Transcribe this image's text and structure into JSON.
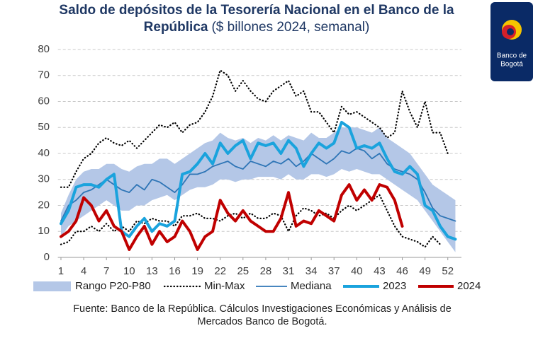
{
  "chart_data": {
    "type": "line",
    "title_lines": [
      "Saldo de depósitos de la Tesorería Nacional en el Banco de la",
      "República"
    ],
    "subtitle": "($ billones 2024, semanal)",
    "logo_text": [
      "Banco de",
      "Bogotá"
    ],
    "source_lines": [
      "Fuente: Banco de la República. Cálculos Investigaciones Económicas y Análisis de",
      "Mercados Banco de Bogotá."
    ],
    "x": [
      1,
      2,
      3,
      4,
      5,
      6,
      7,
      8,
      9,
      10,
      11,
      12,
      13,
      14,
      15,
      16,
      17,
      18,
      19,
      20,
      21,
      22,
      23,
      24,
      25,
      26,
      27,
      28,
      29,
      30,
      31,
      32,
      33,
      34,
      35,
      36,
      37,
      38,
      39,
      40,
      41,
      42,
      43,
      44,
      45,
      46,
      47,
      48,
      49,
      50,
      51,
      52,
      53
    ],
    "xlim": [
      0.6,
      53.8
    ],
    "xticks": [
      1,
      4,
      7,
      10,
      13,
      16,
      19,
      22,
      25,
      28,
      31,
      34,
      37,
      40,
      43,
      46,
      49,
      52
    ],
    "ylim": [
      0,
      80
    ],
    "yticks": [
      0,
      10,
      20,
      30,
      40,
      50,
      60,
      70,
      80
    ],
    "grid": true,
    "band": {
      "name": "Rango P20-P80",
      "color": "#b4c7e7",
      "lower": [
        8,
        12,
        14,
        16,
        18,
        20,
        22,
        20,
        18,
        18,
        20,
        20,
        22,
        23,
        24,
        22,
        24,
        26,
        27,
        27,
        28,
        30,
        30,
        29,
        30,
        30,
        31,
        31,
        31,
        30,
        32,
        30,
        30,
        32,
        32,
        31,
        32,
        34,
        33,
        34,
        33,
        32,
        32,
        30,
        28,
        26,
        24,
        22,
        18,
        14,
        10,
        6,
        2
      ],
      "upper": [
        17,
        24,
        30,
        33,
        34,
        34,
        36,
        36,
        34,
        33,
        35,
        36,
        36,
        38,
        38,
        36,
        38,
        40,
        42,
        44,
        45,
        48,
        46,
        45,
        46,
        44,
        46,
        45,
        47,
        45,
        47,
        46,
        45,
        48,
        46,
        46,
        48,
        50,
        50,
        50,
        49,
        48,
        50,
        46,
        44,
        42,
        40,
        36,
        32,
        28,
        26,
        24,
        22
      ]
    },
    "minmax": {
      "name": "Min-Max",
      "color": "#000000",
      "min": [
        5,
        6,
        10,
        10,
        12,
        10,
        13,
        10,
        12,
        10,
        14,
        13,
        15,
        14,
        14,
        12,
        16,
        16,
        17,
        15,
        15,
        14,
        16,
        17,
        15,
        17,
        15,
        15,
        17,
        16,
        10,
        16,
        19,
        18,
        16,
        17,
        15,
        18,
        20,
        18,
        20,
        22,
        24,
        18,
        12,
        8,
        7,
        6,
        4,
        8,
        5,
        null,
        null
      ],
      "max": [
        27,
        27,
        33,
        38,
        40,
        44,
        46,
        44,
        43,
        45,
        42,
        45,
        48,
        51,
        50,
        52,
        48,
        51,
        52,
        56,
        62,
        72,
        70,
        64,
        68,
        64,
        61,
        60,
        64,
        66,
        68,
        62,
        64,
        56,
        56,
        52,
        48,
        58,
        55,
        56,
        54,
        52,
        50,
        46,
        48,
        64,
        56,
        50,
        60,
        48,
        48,
        40,
        null
      ]
    },
    "series": [
      {
        "name": "Mediana",
        "color": "#2e75b6",
        "width": 1.8,
        "values": [
          14,
          20,
          22,
          25,
          26,
          28,
          30,
          28,
          26,
          25,
          28,
          26,
          30,
          29,
          27,
          25,
          28,
          32,
          32,
          33,
          35,
          36,
          37,
          35,
          34,
          37,
          36,
          35,
          37,
          36,
          38,
          35,
          37,
          40,
          38,
          36,
          38,
          41,
          40,
          42,
          41,
          38,
          40,
          36,
          34,
          33,
          32,
          30,
          25,
          19,
          16,
          15,
          14
        ]
      },
      {
        "name": "2023",
        "color": "#1aa3dd",
        "width": 4,
        "values": [
          13,
          18,
          27,
          28,
          28,
          27,
          30,
          32,
          10,
          8,
          12,
          15,
          10,
          13,
          12,
          14,
          32,
          33,
          36,
          40,
          36,
          44,
          40,
          43,
          45,
          38,
          44,
          43,
          44,
          40,
          45,
          42,
          35,
          40,
          44,
          42,
          44,
          52,
          50,
          42,
          43,
          42,
          44,
          38,
          33,
          32,
          35,
          32,
          20,
          18,
          12,
          8,
          7
        ]
      },
      {
        "name": "2024",
        "color": "#c00000",
        "width": 4,
        "values": [
          8,
          10,
          14,
          23,
          20,
          14,
          18,
          12,
          10,
          3,
          8,
          12,
          5,
          10,
          6,
          8,
          14,
          10,
          3,
          8,
          10,
          22,
          17,
          14,
          18,
          14,
          12,
          10,
          10,
          15,
          25,
          12,
          14,
          13,
          18,
          16,
          14,
          24,
          28,
          22,
          26,
          22,
          28,
          27,
          22,
          12,
          null,
          null,
          null,
          null,
          null,
          null,
          null
        ]
      }
    ]
  }
}
